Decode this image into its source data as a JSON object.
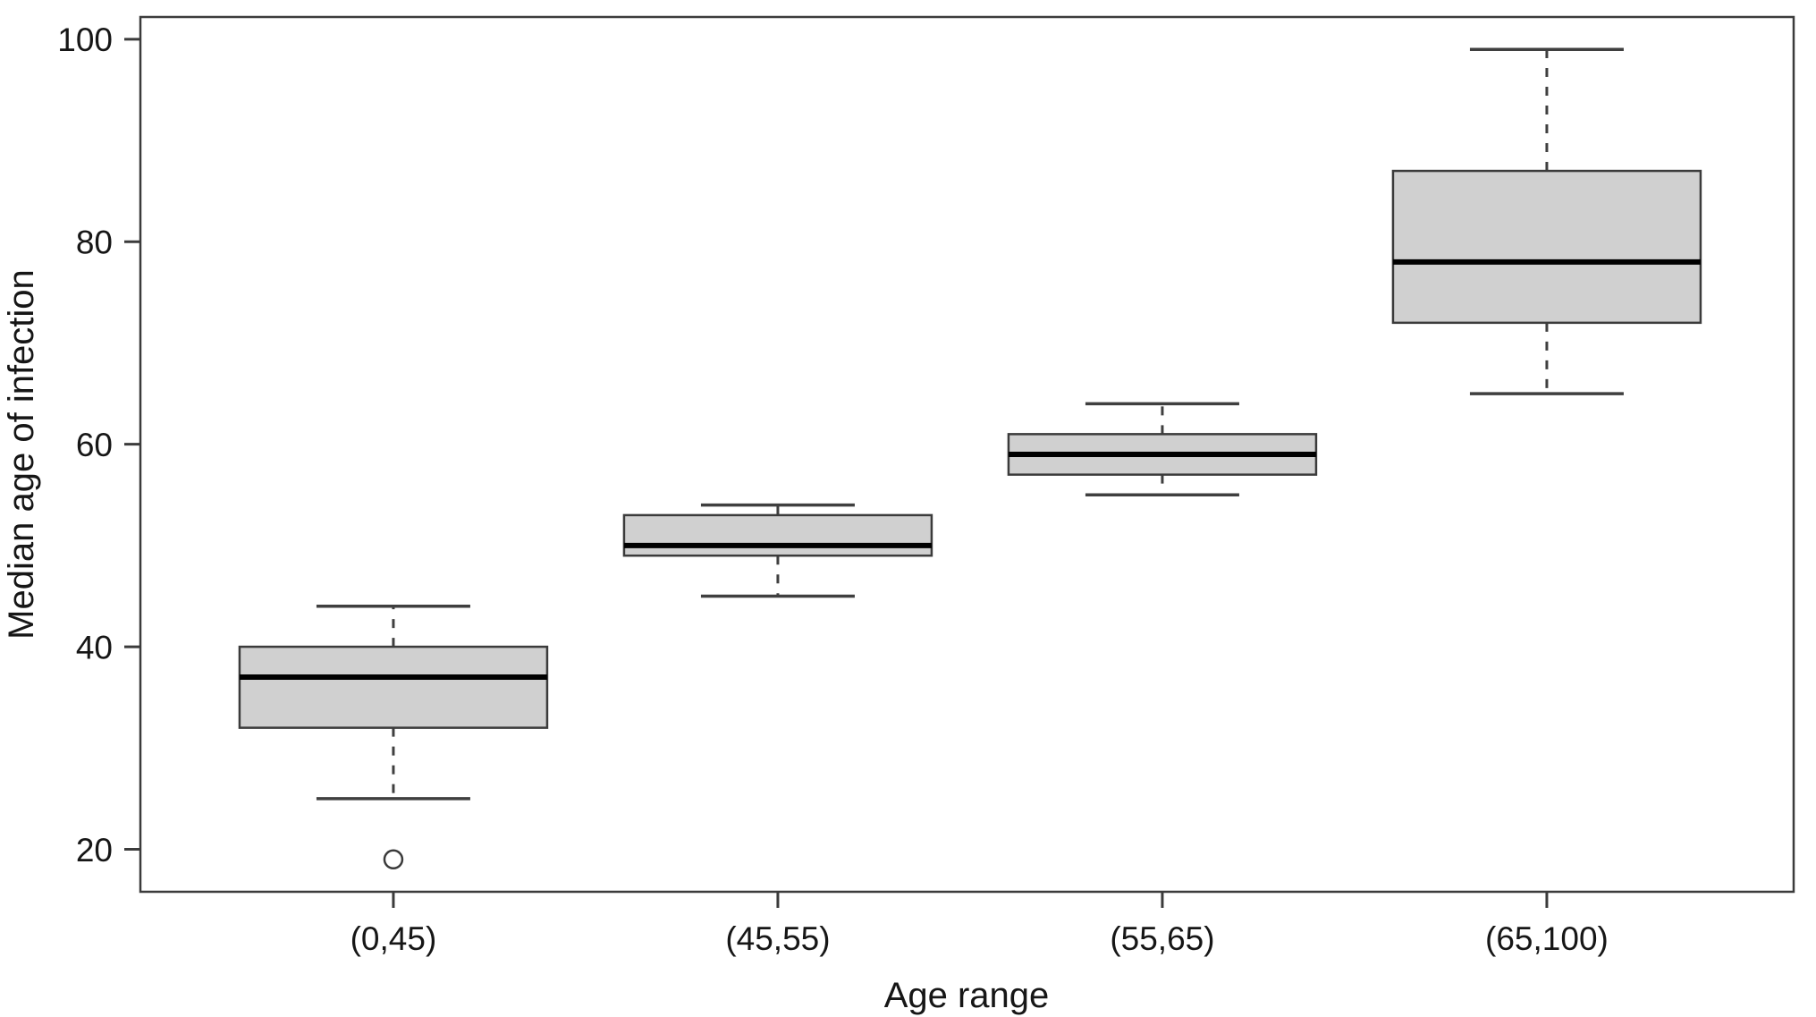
{
  "chart_data": {
    "type": "boxplot",
    "title": "",
    "xlabel": "Age range",
    "ylabel": "Median age of infection",
    "categories": [
      "(0,45)",
      "(45,55)",
      "(55,65)",
      "(65,100)"
    ],
    "boxes": [
      {
        "category": "(0,45)",
        "whisker_low": 25,
        "q1": 32,
        "median": 37,
        "q3": 40,
        "whisker_high": 44,
        "outliers": [
          19
        ]
      },
      {
        "category": "(45,55)",
        "whisker_low": 45,
        "q1": 49,
        "median": 50,
        "q3": 53,
        "whisker_high": 54,
        "outliers": []
      },
      {
        "category": "(55,65)",
        "whisker_low": 55,
        "q1": 57,
        "median": 59,
        "q3": 61,
        "whisker_high": 64,
        "outliers": []
      },
      {
        "category": "(65,100)",
        "whisker_low": 65,
        "q1": 72,
        "median": 78,
        "q3": 87,
        "whisker_high": 99,
        "outliers": []
      }
    ],
    "yticks": [
      20,
      40,
      60,
      80,
      100
    ],
    "ylim": [
      15.8,
      102.2
    ],
    "xlim": [
      0.342,
      4.642
    ],
    "box_positions": [
      1,
      2,
      3,
      4
    ],
    "box_width_units": 0.8,
    "cap_width_units": 0.4,
    "grid": false,
    "legend": null,
    "outlier_marker": "open-circle",
    "whisker_style": "dashed",
    "colors": {
      "box_fill": "#d0d0d0",
      "box_border": "#3b3b3b",
      "median": "#000000",
      "background": "#ffffff",
      "text": "#161616"
    }
  }
}
